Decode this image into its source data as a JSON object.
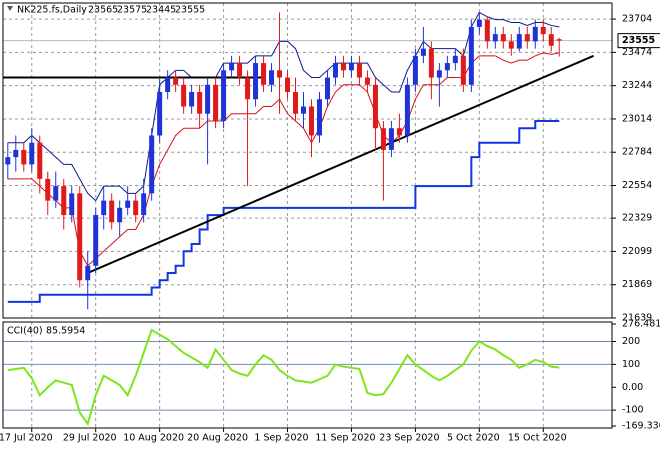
{
  "chart_data": [
    {
      "type": "candlestick",
      "title": "NK225.fs,Daily",
      "candles": [
        [
          22700,
          22850,
          22600,
          22750
        ],
        [
          22750,
          22900,
          22650,
          22800
        ],
        [
          22800,
          22850,
          22650,
          22700
        ],
        [
          22700,
          22950,
          22650,
          22850
        ],
        [
          22850,
          22900,
          22500,
          22600
        ],
        [
          22600,
          22650,
          22350,
          22450
        ],
        [
          22450,
          22650,
          22400,
          22550
        ],
        [
          22550,
          22600,
          22250,
          22350
        ],
        [
          22350,
          22550,
          22300,
          22500
        ],
        [
          22500,
          22550,
          21850,
          21900
        ],
        [
          21900,
          22100,
          21700,
          22000
        ],
        [
          22000,
          22400,
          21950,
          22350
        ],
        [
          22350,
          22550,
          22250,
          22450
        ],
        [
          22450,
          22500,
          22250,
          22300
        ],
        [
          22300,
          22450,
          22200,
          22400
        ],
        [
          22400,
          22550,
          22350,
          22450
        ],
        [
          22450,
          22500,
          22300,
          22350
        ],
        [
          22350,
          22600,
          22300,
          22500
        ],
        [
          22500,
          22950,
          22450,
          22900
        ],
        [
          22900,
          23300,
          22850,
          23200
        ],
        [
          23200,
          23350,
          23150,
          23300
        ],
        [
          23300,
          23350,
          23200,
          23250
        ],
        [
          23250,
          23300,
          23050,
          23100
        ],
        [
          23100,
          23250,
          23050,
          23200
        ],
        [
          23200,
          23250,
          22950,
          23050
        ],
        [
          23050,
          23300,
          22700,
          23250
        ],
        [
          23250,
          23300,
          22950,
          23000
        ],
        [
          23000,
          23400,
          22950,
          23350
        ],
        [
          23350,
          23450,
          23300,
          23400
        ],
        [
          23400,
          23450,
          23250,
          23300
        ],
        [
          23300,
          23350,
          22550,
          23150
        ],
        [
          23150,
          23450,
          23100,
          23400
        ],
        [
          23400,
          23450,
          23200,
          23250
        ],
        [
          23250,
          23400,
          23200,
          23350
        ],
        [
          23350,
          23750,
          23050,
          23300
        ],
        [
          23300,
          23350,
          23150,
          23200
        ],
        [
          23200,
          23300,
          23000,
          23050
        ],
        [
          23050,
          23200,
          22950,
          23100
        ],
        [
          23100,
          23150,
          22750,
          22900
        ],
        [
          22900,
          23200,
          22850,
          23150
        ],
        [
          23150,
          23350,
          23100,
          23300
        ],
        [
          23300,
          23450,
          23250,
          23400
        ],
        [
          23400,
          23450,
          23300,
          23350
        ],
        [
          23350,
          23450,
          23300,
          23400
        ],
        [
          23400,
          23450,
          23250,
          23300
        ],
        [
          23300,
          23350,
          23200,
          23250
        ],
        [
          23250,
          23300,
          22800,
          22950
        ],
        [
          22950,
          23000,
          22450,
          22800
        ],
        [
          22800,
          23000,
          22750,
          22950
        ],
        [
          22950,
          23050,
          22850,
          22900
        ],
        [
          22900,
          23300,
          22850,
          23250
        ],
        [
          23250,
          23500,
          23200,
          23450
        ],
        [
          23450,
          23650,
          23400,
          23500
        ],
        [
          23500,
          23550,
          23150,
          23300
        ],
        [
          23300,
          23400,
          23100,
          23350
        ],
        [
          23350,
          23450,
          23300,
          23400
        ],
        [
          23400,
          23500,
          23350,
          23450
        ],
        [
          23450,
          23500,
          23200,
          23250
        ],
        [
          23250,
          23700,
          23200,
          23650
        ],
        [
          23650,
          23750,
          23600,
          23700
        ],
        [
          23700,
          23720,
          23500,
          23550
        ],
        [
          23550,
          23650,
          23500,
          23600
        ],
        [
          23600,
          23650,
          23500,
          23550
        ],
        [
          23550,
          23600,
          23450,
          23500
        ],
        [
          23500,
          23650,
          23480,
          23600
        ],
        [
          23600,
          23650,
          23500,
          23550
        ],
        [
          23550,
          23700,
          23500,
          23650
        ],
        [
          23650,
          23700,
          23550,
          23600
        ],
        [
          23600,
          23650,
          23480,
          23520
        ],
        [
          23565,
          23575,
          23445,
          23555
        ]
      ],
      "up_color": "#1f33d6",
      "down_color": "#e0191b",
      "series": [
        {
          "color": "#0b1a8a",
          "values": [
            22850,
            22850,
            22850,
            22900,
            22850,
            22800,
            22750,
            22700,
            22700,
            22600,
            22500,
            22450,
            22550,
            22550,
            22550,
            22500,
            22500,
            22550,
            22900,
            23250,
            23300,
            23350,
            23350,
            23300,
            23300,
            23300,
            23300,
            23400,
            23400,
            23400,
            23400,
            23450,
            23450,
            23450,
            23550,
            23550,
            23500,
            23350,
            23300,
            23300,
            23350,
            23400,
            23400,
            23400,
            23400,
            23400,
            23300,
            23250,
            23200,
            23200,
            23350,
            23450,
            23550,
            23500,
            23500,
            23500,
            23500,
            23450,
            23650,
            23750,
            23720,
            23700,
            23700,
            23680,
            23680,
            23660,
            23680,
            23680,
            23660,
            23650
          ]
        },
        {
          "color": "#d4101a",
          "values": [
            22600,
            22600,
            22600,
            22600,
            22550,
            22500,
            22450,
            22400,
            22400,
            22100,
            22000,
            22050,
            22100,
            22150,
            22200,
            22250,
            22250,
            22350,
            22550,
            22700,
            22800,
            22900,
            22950,
            22950,
            22950,
            23000,
            23000,
            23000,
            23050,
            23050,
            23050,
            23050,
            23100,
            23100,
            23150,
            23050,
            23000,
            22950,
            22850,
            22950,
            23100,
            23200,
            23250,
            23250,
            23250,
            23200,
            23050,
            22900,
            22850,
            22900,
            23000,
            23150,
            23250,
            23250,
            23250,
            23300,
            23300,
            23300,
            23400,
            23450,
            23450,
            23450,
            23420,
            23400,
            23420,
            23420,
            23450,
            23470,
            23460,
            23470
          ]
        },
        {
          "color": "#1236e0",
          "step": true,
          "values": [
            21750,
            21750,
            21750,
            21750,
            21800,
            21800,
            21800,
            21800,
            21800,
            21800,
            21800,
            21800,
            21800,
            21800,
            21800,
            21800,
            21800,
            21800,
            21850,
            21900,
            21950,
            22000,
            22100,
            22150,
            22250,
            22350,
            22350,
            22400,
            22400,
            22400,
            22400,
            22400,
            22400,
            22400,
            22400,
            22400,
            22400,
            22400,
            22400,
            22400,
            22400,
            22400,
            22400,
            22400,
            22400,
            22400,
            22400,
            22400,
            22400,
            22400,
            22400,
            22550,
            22550,
            22550,
            22550,
            22550,
            22550,
            22550,
            22750,
            22850,
            22850,
            22850,
            22850,
            22850,
            22950,
            22950,
            23000,
            23000,
            23000,
            23000
          ]
        }
      ],
      "trendlines": [
        {
          "color": "#000000",
          "x": [
            10,
            73.3
          ],
          "y": [
            21950,
            23450
          ]
        },
        {
          "color": "#000000",
          "x": [
            -0.6,
            32.3
          ],
          "y": [
            23300,
            23300
          ]
        }
      ],
      "xlim": [
        -0.6,
        75.6
      ],
      "ylim": [
        21639,
        23815
      ],
      "yticks": [
        23704,
        23474,
        23244,
        23014,
        22784,
        22554,
        22329,
        22099,
        21869,
        21639
      ],
      "xticks": [
        {
          "value": 3,
          "label": "17 Jul 2020"
        },
        {
          "value": 11,
          "label": "29 Jul 2020"
        },
        {
          "value": 19,
          "label": "10 Aug 2020"
        },
        {
          "value": 27,
          "label": "20 Aug 2020"
        },
        {
          "value": 35,
          "label": "1 Sep 2020"
        },
        {
          "value": 43,
          "label": "11 Sep 2020"
        },
        {
          "value": 51,
          "label": "23 Sep 2020"
        },
        {
          "value": 59,
          "label": "5 Oct 2020"
        },
        {
          "value": 67,
          "label": "15 Oct 2020"
        }
      ],
      "grid": true
    },
    {
      "type": "line",
      "title": "CCI(40)",
      "color": "#7ee51c",
      "values": [
        75,
        80,
        85,
        40,
        -35,
        0,
        30,
        20,
        10,
        -110,
        -160,
        -35,
        50,
        30,
        10,
        -35,
        50,
        150,
        250,
        230,
        210,
        180,
        150,
        130,
        110,
        85,
        165,
        120,
        75,
        60,
        50,
        100,
        140,
        120,
        75,
        50,
        30,
        25,
        20,
        35,
        50,
        100,
        90,
        85,
        80,
        -25,
        -35,
        -30,
        20,
        80,
        140,
        100,
        75,
        50,
        30,
        50,
        75,
        100,
        160,
        200,
        180,
        165,
        140,
        120,
        85,
        100,
        120,
        110,
        90,
        85.5954
      ],
      "xlim": [
        -0.6,
        75.6
      ],
      "ylim": [
        -169.336,
        276.4817
      ],
      "yticks": [
        276.4817,
        200,
        100,
        {
          "value": 0,
          "label": "0.00"
        },
        -100,
        -169.336
      ],
      "levels": [
        200,
        100,
        -100
      ]
    }
  ]
}
